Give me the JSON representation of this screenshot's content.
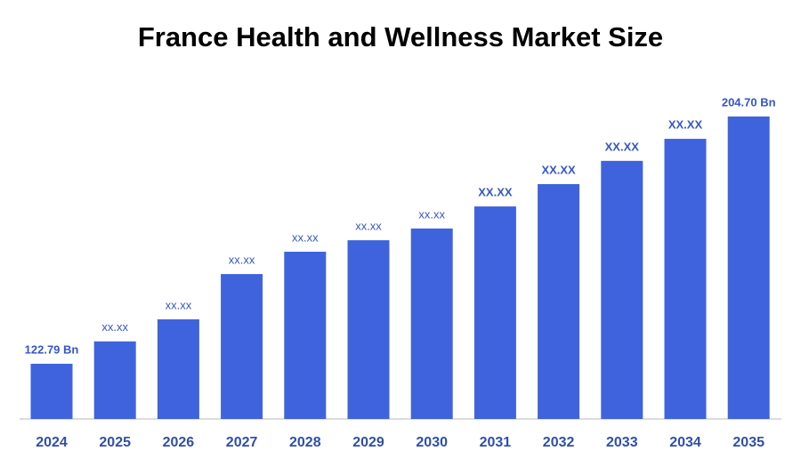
{
  "chart_data": {
    "type": "bar",
    "title": "France Health and Wellness Market Size",
    "categories": [
      "2024",
      "2025",
      "2026",
      "2027",
      "2028",
      "2029",
      "2030",
      "2031",
      "2032",
      "2033",
      "2034",
      "2035"
    ],
    "values": [
      122.79,
      130.2,
      137.5,
      152.5,
      159.9,
      163.7,
      167.6,
      174.9,
      182.3,
      190.0,
      197.3,
      204.7
    ],
    "value_labels": [
      "122.79 Bn",
      "xx.xx",
      "xx.xx",
      "xx.xx",
      "xx.xx",
      "xx.xx",
      "xx.xx",
      "XX.XX",
      "XX.XX",
      "XX.XX",
      "XX.XX",
      "204.70 Bn"
    ],
    "color": "#3f63dd",
    "ylim": [
      104.5,
      215
    ]
  }
}
